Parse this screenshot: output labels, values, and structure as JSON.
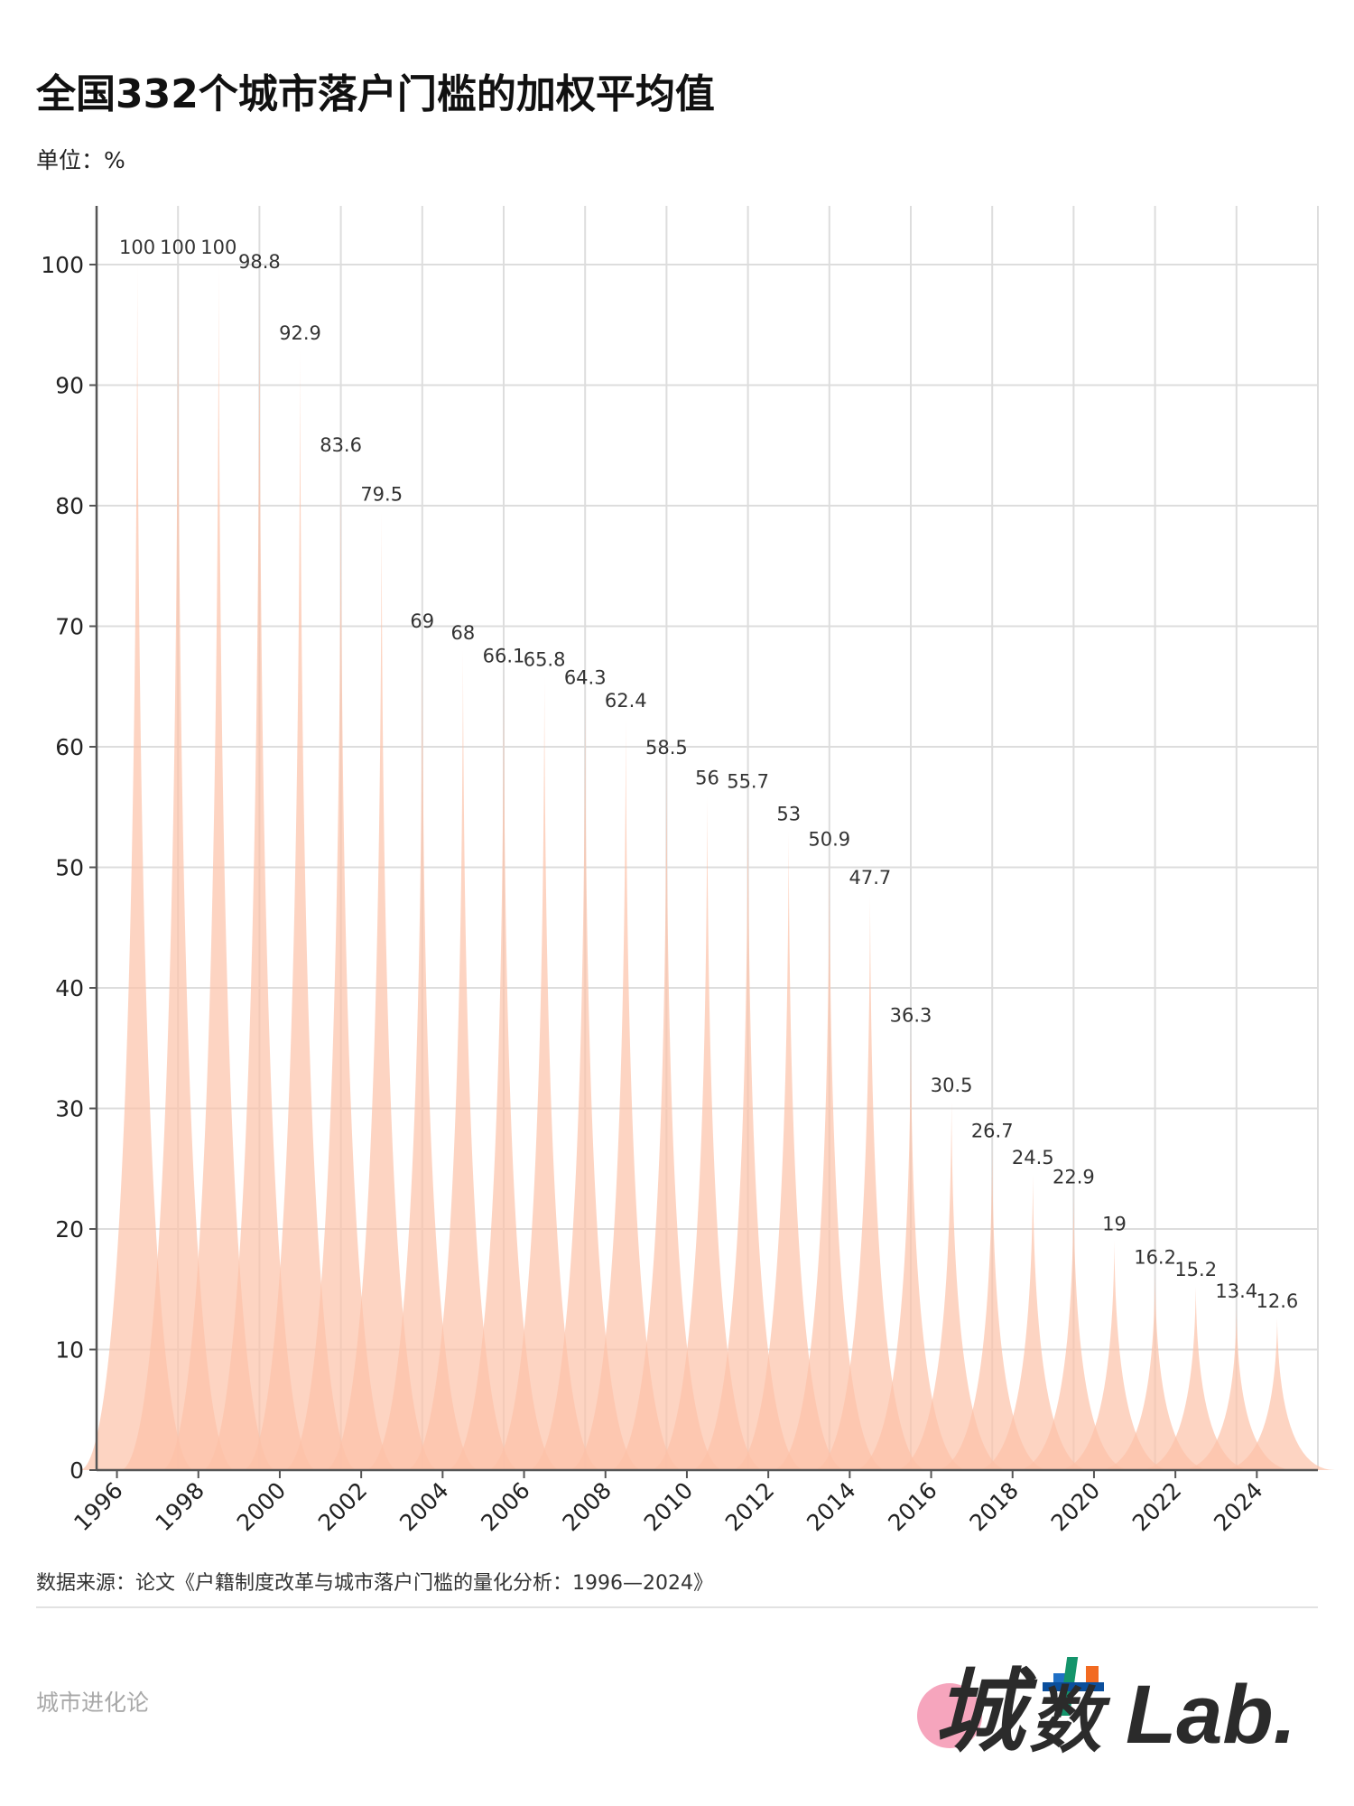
{
  "header": {
    "title": "全国332个城市落户门槛的加权平均值",
    "unit": "单位：%"
  },
  "footer": {
    "source": "数据来源：论文《户籍制度改革与城市落户门槛的量化分析：1996—2024》",
    "brand_text": "城市进化论",
    "logo_text": "城数Lab."
  },
  "chart_data": {
    "type": "bar",
    "bar_style": "pictorial-spike",
    "title": "全国332个城市落户门槛的加权平均值",
    "ylabel": "单位：%",
    "xlabel": "",
    "x": [
      1996,
      1997,
      1998,
      1999,
      2000,
      2001,
      2002,
      2003,
      2004,
      2005,
      2006,
      2007,
      2008,
      2009,
      2010,
      2011,
      2012,
      2013,
      2014,
      2015,
      2016,
      2017,
      2018,
      2019,
      2020,
      2021,
      2022,
      2023,
      2024
    ],
    "values": [
      100,
      100,
      100,
      98.8,
      92.9,
      83.6,
      79.5,
      69,
      68,
      66.1,
      65.8,
      64.3,
      62.4,
      58.5,
      56,
      55.7,
      53,
      50.9,
      47.7,
      36.3,
      30.5,
      26.7,
      24.5,
      22.9,
      19,
      16.2,
      15.2,
      13.4,
      12.6
    ],
    "labels": [
      "100",
      "100",
      "100",
      "98.8",
      "92.9",
      "83.6",
      "79.5",
      "69",
      "68",
      "66.1",
      "65.8",
      "64.3",
      "62.4",
      "58.5",
      "56",
      "55.7",
      "53",
      "50.9",
      "47.7",
      "36.3",
      "30.5",
      "26.7",
      "24.5",
      "22.9",
      "19",
      "16.2",
      "15.2",
      "13.4",
      "12.6"
    ],
    "ylim": [
      0,
      100
    ],
    "yticks": [
      "0",
      "10",
      "20",
      "30",
      "40",
      "50",
      "60",
      "70",
      "80",
      "90",
      "100"
    ],
    "xticks": [
      "1996",
      "1998",
      "2000",
      "2002",
      "2004",
      "2006",
      "2008",
      "2010",
      "2012",
      "2014",
      "2016",
      "2018",
      "2020",
      "2022",
      "2024"
    ],
    "grid": true,
    "colors": {
      "fill": "#fcc2a8",
      "text": "#333333",
      "grid": "#dddddd",
      "axis": "#555555"
    }
  }
}
